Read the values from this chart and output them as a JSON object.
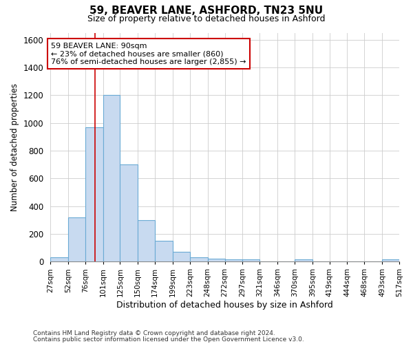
{
  "title1": "59, BEAVER LANE, ASHFORD, TN23 5NU",
  "title2": "Size of property relative to detached houses in Ashford",
  "xlabel": "Distribution of detached houses by size in Ashford",
  "ylabel": "Number of detached properties",
  "footnote1": "Contains HM Land Registry data © Crown copyright and database right 2024.",
  "footnote2": "Contains public sector information licensed under the Open Government Licence v3.0.",
  "bin_edges": [
    27,
    52,
    76,
    101,
    125,
    150,
    174,
    199,
    223,
    248,
    272,
    297,
    321,
    346,
    370,
    395,
    419,
    444,
    468,
    493,
    517
  ],
  "values": [
    30,
    320,
    970,
    1200,
    700,
    300,
    150,
    70,
    30,
    20,
    15,
    15,
    0,
    0,
    15,
    0,
    0,
    0,
    0,
    15
  ],
  "bar_color": "#c8daf0",
  "bar_edge_color": "#6aaad4",
  "grid_color": "#cccccc",
  "bg_color": "#ffffff",
  "fig_bg_color": "#ffffff",
  "property_sqm": 90,
  "property_line_color": "#cc0000",
  "annotation_line1": "59 BEAVER LANE: 90sqm",
  "annotation_line2": "← 23% of detached houses are smaller (860)",
  "annotation_line3": "76% of semi-detached houses are larger (2,855) →",
  "annotation_box_fc": "#ffffff",
  "annotation_box_ec": "#cc0000",
  "ylim_max": 1650,
  "yticks": [
    0,
    200,
    400,
    600,
    800,
    1000,
    1200,
    1400,
    1600
  ]
}
